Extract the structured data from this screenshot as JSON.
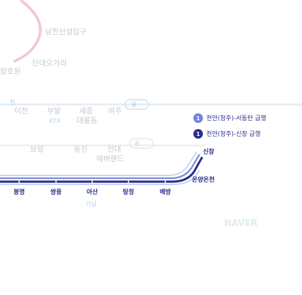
{
  "background": {
    "place_labels": [
      "남한산성입구",
      "단대오거리",
      "이천",
      "부발",
      "세종",
      "대룡동",
      "여주",
      "보람",
      "동진",
      "전대",
      "에버랜드",
      "장호원",
      "올",
      "공",
      "천",
      "KTX",
      "가남"
    ]
  },
  "legend": [
    {
      "number": "1",
      "label": "천안(청주)-서동탄 급행"
    },
    {
      "number": "1",
      "label": "천안(청주)-신창 급행"
    }
  ],
  "stations": {
    "terminus": "신창",
    "on_curve": "온양온천",
    "row": [
      "봉명",
      "쌍용",
      "아산",
      "탕정",
      "배방"
    ]
  },
  "colors": {
    "line_dark": "#2a2f86",
    "line_light": "#6f86d8",
    "line_pale": "#c7d4ef",
    "background_line": "#cfe0f0",
    "pink_line": "#f2c8d6"
  },
  "watermark": "NAVER"
}
